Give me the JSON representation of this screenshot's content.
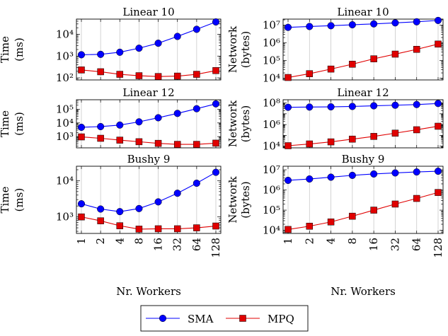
{
  "colors": {
    "sma": "#0000ff",
    "mpq": "#e00000",
    "grid": "#c8c8c8",
    "axis": "#000000"
  },
  "legend": {
    "placement": "bottom-center",
    "entries": [
      {
        "name": "SMA",
        "marker": "circle"
      },
      {
        "name": "MPQ",
        "marker": "square"
      }
    ]
  },
  "chart_data": [
    {
      "type": "line",
      "title": "Linear 10",
      "ylabel": [
        "Time",
        "(ms)"
      ],
      "xlabel": "",
      "yscale": "log",
      "ylim": [
        80,
        50000
      ],
      "ytick_labels": [
        "10²",
        "10³",
        "10⁴"
      ],
      "grid_x": true,
      "x": [
        1,
        2,
        4,
        8,
        16,
        32,
        64,
        128
      ],
      "series": [
        {
          "name": "SMA",
          "values": [
            1150,
            1200,
            1500,
            2300,
            3900,
            8000,
            17000,
            37000
          ]
        },
        {
          "name": "MPQ",
          "values": [
            230,
            190,
            145,
            125,
            115,
            120,
            145,
            215
          ]
        }
      ]
    },
    {
      "type": "line",
      "title": "Linear 10",
      "ylabel": [
        "Network",
        "(bytes)"
      ],
      "xlabel": "",
      "yscale": "log",
      "ylim": [
        8000,
        22000000
      ],
      "ytick_labels": [
        "10⁴",
        "10⁵",
        "10⁶",
        "10⁷"
      ],
      "grid_x": true,
      "x": [
        1,
        2,
        4,
        8,
        16,
        32,
        64,
        128
      ],
      "series": [
        {
          "name": "SMA",
          "values": [
            7500000,
            8400000,
            9300000,
            10500000,
            11800000,
            13500000,
            15500000,
            18500000
          ]
        },
        {
          "name": "MPQ",
          "values": [
            11000,
            18000,
            33000,
            62000,
            125000,
            230000,
            430000,
            850000
          ]
        }
      ]
    },
    {
      "type": "line",
      "title": "Linear 12",
      "ylabel": [
        "Time",
        "(ms)"
      ],
      "xlabel": "",
      "yscale": "log",
      "ylim": [
        150,
        500000
      ],
      "ytick_labels": [
        "10³",
        "10⁴",
        "10⁵"
      ],
      "grid_x": true,
      "x": [
        1,
        2,
        4,
        8,
        16,
        32,
        64,
        128
      ],
      "series": [
        {
          "name": "SMA",
          "values": [
            4800,
            5400,
            7000,
            12000,
            24000,
            50000,
            110000,
            250000
          ]
        },
        {
          "name": "MPQ",
          "values": [
            950,
            750,
            550,
            420,
            320,
            270,
            270,
            330
          ]
        }
      ]
    },
    {
      "type": "line",
      "title": "Linear 12",
      "ylabel": [
        "Network",
        "(bytes)"
      ],
      "xlabel": "",
      "yscale": "log",
      "ylim": [
        7000,
        200000000
      ],
      "ytick_labels": [
        "10⁴",
        "10⁶",
        "10⁸"
      ],
      "grid_x": true,
      "x": [
        1,
        2,
        4,
        8,
        16,
        32,
        64,
        128
      ],
      "series": [
        {
          "name": "SMA",
          "values": [
            40000000,
            42000000,
            44000000,
            48000000,
            55000000,
            62000000,
            72000000,
            90000000
          ]
        },
        {
          "name": "MPQ",
          "values": [
            11000,
            16000,
            25000,
            45000,
            80000,
            160000,
            330000,
            700000
          ]
        }
      ]
    },
    {
      "type": "line",
      "title": "Bushy 9",
      "ylabel": [
        "Time",
        "(ms)"
      ],
      "xlabel": "Nr. Workers",
      "yscale": "log",
      "ylim": [
        350,
        25000
      ],
      "ytick_labels": [
        "10³",
        "10⁴"
      ],
      "grid_x": true,
      "x": [
        1,
        2,
        4,
        8,
        16,
        32,
        64,
        128
      ],
      "x_tick_labels": [
        "1",
        "2",
        "4",
        "8",
        "16",
        "32",
        "64",
        "128"
      ],
      "series": [
        {
          "name": "SMA",
          "values": [
            2300,
            1650,
            1400,
            1700,
            2600,
            4500,
            8500,
            17000
          ]
        },
        {
          "name": "MPQ",
          "values": [
            1000,
            780,
            570,
            460,
            470,
            470,
            500,
            560
          ]
        }
      ]
    },
    {
      "type": "line",
      "title": "Bushy 9",
      "ylabel": [
        "Network",
        "(bytes)"
      ],
      "xlabel": "Nr. Workers",
      "yscale": "log",
      "ylim": [
        7000,
        15000000
      ],
      "ytick_labels": [
        "10⁴",
        "10⁵",
        "10⁶",
        "10⁷"
      ],
      "grid_x": true,
      "x": [
        1,
        2,
        4,
        8,
        16,
        32,
        64,
        128
      ],
      "x_tick_labels": [
        "1",
        "2",
        "4",
        "8",
        "16",
        "32",
        "64",
        "128"
      ],
      "series": [
        {
          "name": "SMA",
          "values": [
            3000000,
            3500000,
            4300000,
            5300000,
            6200000,
            7000000,
            7800000,
            8500000
          ]
        },
        {
          "name": "MPQ",
          "values": [
            11000,
            16000,
            26000,
            50000,
            100000,
            200000,
            380000,
            750000
          ]
        }
      ]
    }
  ]
}
